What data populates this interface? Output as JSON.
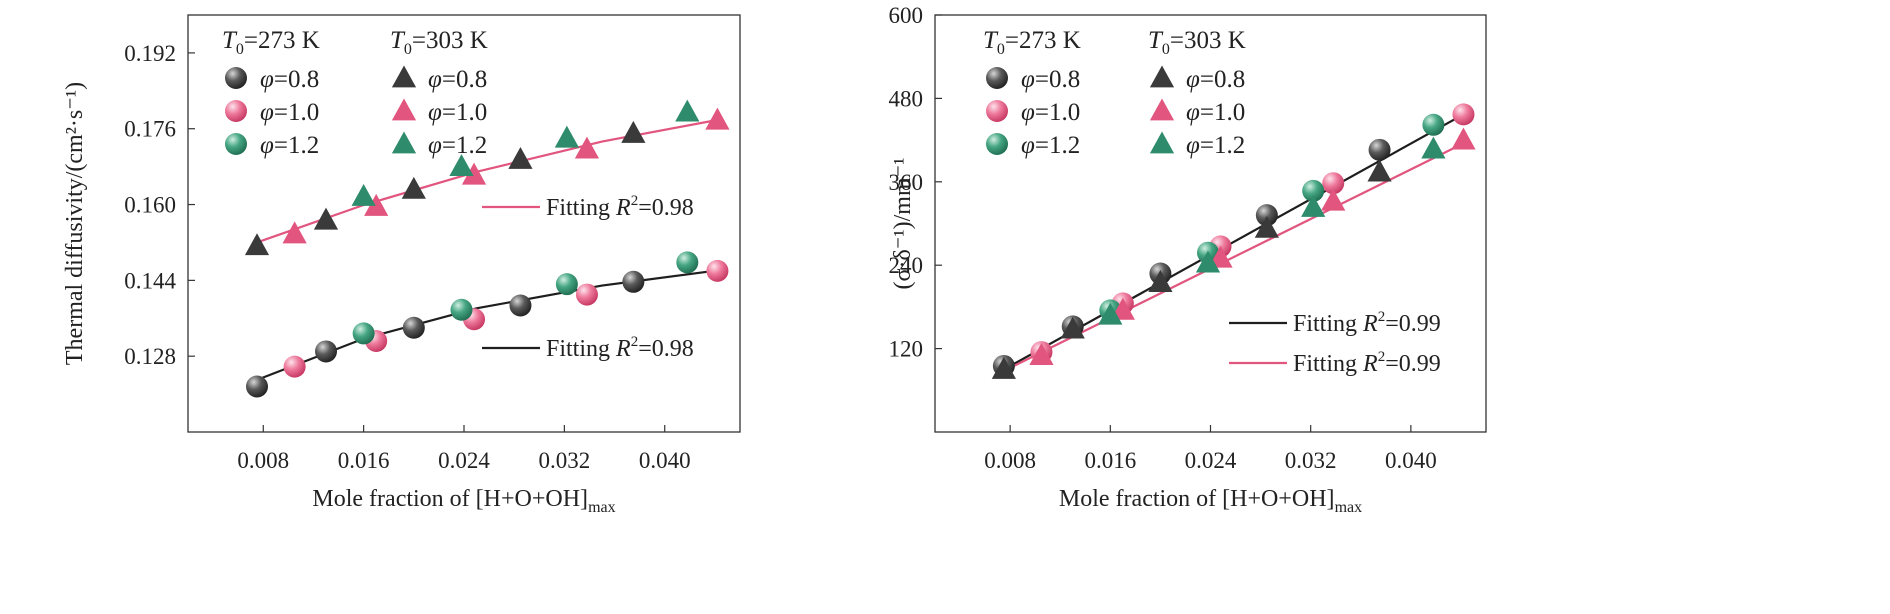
{
  "chart_data": [
    {
      "type": "scatter",
      "xlabel": "Mole fraction of [H+O+OH]",
      "xlabel_sub": "max",
      "ylabel": "Thermal diffusivity/(cm²·s⁻¹)",
      "xlim": [
        0.002,
        0.046
      ],
      "ylim": [
        0.112,
        0.2
      ],
      "xticks": [
        0.008,
        0.016,
        0.024,
        0.032,
        0.04
      ],
      "xtick_labels": [
        "0.008",
        "0.016",
        "0.024",
        "0.032",
        "0.040"
      ],
      "yticks": [
        0.128,
        0.144,
        0.16,
        0.176,
        0.192
      ],
      "ytick_labels": [
        "0.128",
        "0.144",
        "0.160",
        "0.176",
        "0.192"
      ],
      "legend": {
        "placement": "top-left",
        "headers": [
          {
            "sym": "T",
            "sub": "0",
            "rest": "=273 K"
          },
          {
            "sym": "T",
            "sub": "0",
            "rest": "=303 K"
          }
        ],
        "col1": [
          {
            "sym": "φ",
            "rest": "=0.8",
            "color": "#3a3a3a"
          },
          {
            "sym": "φ",
            "rest": "=1.0",
            "color": "#e1557e"
          },
          {
            "sym": "φ",
            "rest": "=1.2",
            "color": "#2e8b6c"
          }
        ],
        "col2": [
          {
            "sym": "φ",
            "rest": "=0.8",
            "color": "#3a3a3a"
          },
          {
            "sym": "φ",
            "rest": "=1.0",
            "color": "#e1557e"
          },
          {
            "sym": "φ",
            "rest": "=1.2",
            "color": "#2e8b6c"
          }
        ]
      },
      "series": [
        {
          "group": "273 K",
          "marker": "circle",
          "color": "#3a3a3a",
          "x": [
            0.0075,
            0.013,
            0.02,
            0.0285,
            0.0375
          ],
          "y": [
            0.1216,
            0.129,
            0.134,
            0.1387,
            0.1437
          ]
        },
        {
          "group": "273 K",
          "marker": "circle",
          "color": "#e1557e",
          "x": [
            0.0105,
            0.017,
            0.0248,
            0.0338,
            0.0442
          ],
          "y": [
            0.1258,
            0.1312,
            0.1358,
            0.141,
            0.146
          ]
        },
        {
          "group": "273 K",
          "marker": "circle",
          "color": "#2e8b6c",
          "x": [
            0.016,
            0.0238,
            0.0322,
            0.0418
          ],
          "y": [
            0.1328,
            0.1378,
            0.1432,
            0.1478
          ]
        },
        {
          "group": "303 K",
          "marker": "triangle",
          "color": "#3a3a3a",
          "x": [
            0.0075,
            0.013,
            0.02,
            0.0285,
            0.0375
          ],
          "y": [
            0.1513,
            0.1567,
            0.1632,
            0.1695,
            0.175
          ]
        },
        {
          "group": "303 K",
          "marker": "triangle",
          "color": "#e1557e",
          "x": [
            0.0105,
            0.017,
            0.0248,
            0.0338,
            0.0442
          ],
          "y": [
            0.1538,
            0.1596,
            0.1662,
            0.1717,
            0.1778
          ]
        },
        {
          "group": "303 K",
          "marker": "triangle",
          "color": "#2e8b6c",
          "x": [
            0.016,
            0.0238,
            0.0322,
            0.0418
          ],
          "y": [
            0.1617,
            0.168,
            0.174,
            0.1795
          ]
        }
      ],
      "fits": [
        {
          "label": "Fitting ",
          "r2_rest": "=0.98",
          "color": "#e1557e",
          "x": [
            0.0075,
            0.016,
            0.025,
            0.035,
            0.0445
          ],
          "y": [
            0.152,
            0.1599,
            0.1669,
            0.1733,
            0.178
          ]
        },
        {
          "label": "Fitting ",
          "r2_rest": "=0.98",
          "color": "#1e1e1e",
          "x": [
            0.0075,
            0.016,
            0.025,
            0.035,
            0.0445
          ],
          "y": [
            0.123,
            0.1317,
            0.1381,
            0.1429,
            0.1462
          ]
        }
      ]
    },
    {
      "type": "scatter",
      "xlabel": "Mole fraction of [H+O+OH]",
      "xlabel_sub": "max",
      "ylabel": "(σ·δ⁻¹)/mm⁻¹",
      "xlim": [
        0.002,
        0.046
      ],
      "ylim": [
        0,
        600
      ],
      "xticks": [
        0.008,
        0.016,
        0.024,
        0.032,
        0.04
      ],
      "xtick_labels": [
        "0.008",
        "0.016",
        "0.024",
        "0.032",
        "0.040"
      ],
      "yticks": [
        120,
        240,
        360,
        480,
        600
      ],
      "ytick_labels": [
        "120",
        "240",
        "360",
        "480",
        "600"
      ],
      "legend": {
        "placement": "top-left",
        "headers": [
          {
            "sym": "T",
            "sub": "0",
            "rest": "=273 K"
          },
          {
            "sym": "T",
            "sub": "0",
            "rest": "=303 K"
          }
        ],
        "col1": [
          {
            "sym": "φ",
            "rest": "=0.8",
            "color": "#3a3a3a"
          },
          {
            "sym": "φ",
            "rest": "=1.0",
            "color": "#e1557e"
          },
          {
            "sym": "φ",
            "rest": "=1.2",
            "color": "#2e8b6c"
          }
        ],
        "col2": [
          {
            "sym": "φ",
            "rest": "=0.8",
            "color": "#3a3a3a"
          },
          {
            "sym": "φ",
            "rest": "=1.0",
            "color": "#e1557e"
          },
          {
            "sym": "φ",
            "rest": "=1.2",
            "color": "#2e8b6c"
          }
        ]
      },
      "series": [
        {
          "group": "273 K",
          "marker": "circle",
          "color": "#3a3a3a",
          "x": [
            0.0075,
            0.013,
            0.02,
            0.0285,
            0.0375
          ],
          "y": [
            95,
            152,
            228,
            312,
            406
          ]
        },
        {
          "group": "273 K",
          "marker": "circle",
          "color": "#e1557e",
          "x": [
            0.0105,
            0.017,
            0.0248,
            0.0338,
            0.0442
          ],
          "y": [
            115,
            185,
            267,
            358,
            457
          ]
        },
        {
          "group": "273 K",
          "marker": "circle",
          "color": "#2e8b6c",
          "x": [
            0.016,
            0.0238,
            0.0322,
            0.0418
          ],
          "y": [
            175,
            258,
            347,
            442
          ]
        },
        {
          "group": "303 K",
          "marker": "triangle",
          "color": "#3a3a3a",
          "x": [
            0.0075,
            0.013,
            0.02,
            0.0285,
            0.0375
          ],
          "y": [
            90,
            148,
            215,
            293,
            374
          ]
        },
        {
          "group": "303 K",
          "marker": "triangle",
          "color": "#e1557e",
          "x": [
            0.0105,
            0.017,
            0.0248,
            0.0338,
            0.0442
          ],
          "y": [
            110,
            175,
            250,
            332,
            420
          ]
        },
        {
          "group": "303 K",
          "marker": "triangle",
          "color": "#2e8b6c",
          "x": [
            0.016,
            0.0238,
            0.0322,
            0.0418
          ],
          "y": [
            168,
            243,
            323,
            407
          ]
        }
      ],
      "fits": [
        {
          "label": "Fitting ",
          "r2_rest": "=0.99",
          "color": "#1e1e1e",
          "x": [
            0.0075,
            0.044
          ],
          "y": [
            90,
            455
          ]
        },
        {
          "label": "Fitting ",
          "r2_rest": "=0.99",
          "color": "#e1557e",
          "x": [
            0.0075,
            0.0445
          ],
          "y": [
            88,
            418
          ]
        }
      ]
    }
  ]
}
